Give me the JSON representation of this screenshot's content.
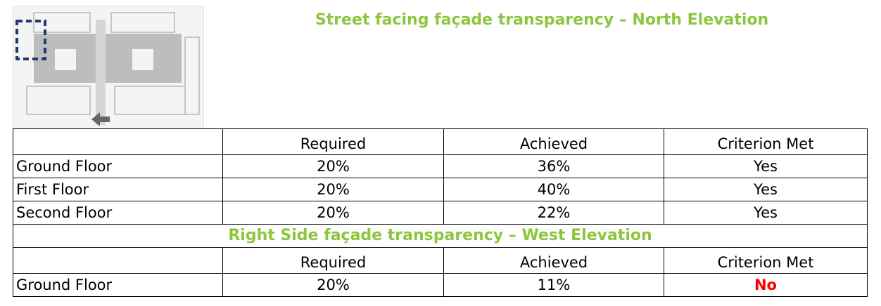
{
  "header": {
    "title": "Street facing façade transparency – North Elevation"
  },
  "table": {
    "columns": [
      "Required",
      "Achieved",
      "Criterion Met"
    ],
    "rows": [
      [
        "Ground Floor",
        "20%",
        "36%",
        "Yes"
      ],
      [
        "First Floor",
        "20%",
        "40%",
        "Yes"
      ],
      [
        "Second Floor",
        "20%",
        "22%",
        "Yes"
      ]
    ]
  },
  "section2": {
    "title": "Right Side façade transparency – West Elevation",
    "columns": [
      "Required",
      "Achieved",
      "Criterion Met"
    ],
    "rows": [
      [
        "Ground Floor",
        "20%",
        "11%",
        "No"
      ]
    ]
  }
}
